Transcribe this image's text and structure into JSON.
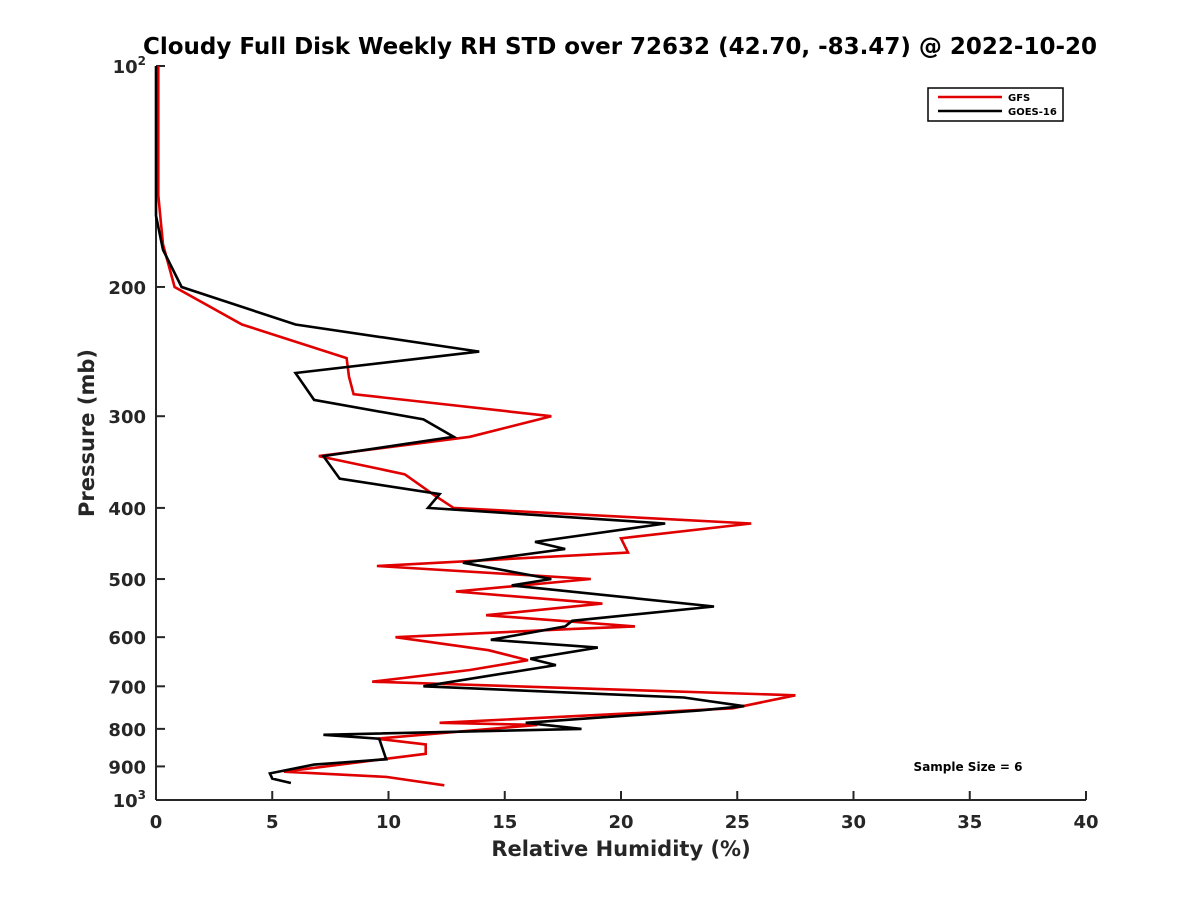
{
  "chart_data": {
    "type": "line",
    "title": "Cloudy Full Disk Weekly RH STD over 72632 (42.70, -83.47) @ 2022-10-20",
    "xlabel": "Relative Humidity (%)",
    "ylabel": "Pressure (mb)",
    "xlim": [
      0,
      40
    ],
    "ylim": [
      100,
      1000
    ],
    "y_scale": "log",
    "y_reversed": true,
    "x_ticks": [
      0,
      5,
      10,
      15,
      20,
      25,
      30,
      35,
      40
    ],
    "y_ticks": [
      100,
      200,
      300,
      400,
      500,
      600,
      700,
      800,
      900,
      1000
    ],
    "y_tick_labels": [
      {
        "value": 100,
        "base": "10",
        "exp": "2"
      },
      {
        "value": 200,
        "base": "200",
        "exp": ""
      },
      {
        "value": 300,
        "base": "300",
        "exp": ""
      },
      {
        "value": 400,
        "base": "400",
        "exp": ""
      },
      {
        "value": 500,
        "base": "500",
        "exp": ""
      },
      {
        "value": 600,
        "base": "600",
        "exp": ""
      },
      {
        "value": 700,
        "base": "700",
        "exp": ""
      },
      {
        "value": 800,
        "base": "800",
        "exp": ""
      },
      {
        "value": 900,
        "base": "900",
        "exp": ""
      },
      {
        "value": 1000,
        "base": "10",
        "exp": "3"
      }
    ],
    "grid": false,
    "legend_position": "top-right",
    "annotation": "Sample Size = 6",
    "series": [
      {
        "name": "GFS",
        "color": "#e00000",
        "points": [
          [
            0.1,
            100
          ],
          [
            0.1,
            150
          ],
          [
            0.3,
            175
          ],
          [
            0.8,
            200
          ],
          [
            3.7,
            225
          ],
          [
            8.2,
            250
          ],
          [
            8.3,
            265
          ],
          [
            8.5,
            280
          ],
          [
            17.0,
            300
          ],
          [
            13.5,
            320
          ],
          [
            7.0,
            340
          ],
          [
            10.7,
            360
          ],
          [
            12.0,
            385
          ],
          [
            12.8,
            400
          ],
          [
            25.6,
            420
          ],
          [
            20.0,
            440
          ],
          [
            20.3,
            460
          ],
          [
            9.5,
            480
          ],
          [
            18.7,
            500
          ],
          [
            12.9,
            520
          ],
          [
            19.2,
            540
          ],
          [
            14.2,
            560
          ],
          [
            20.6,
            580
          ],
          [
            17.8,
            585
          ],
          [
            10.3,
            600
          ],
          [
            14.3,
            625
          ],
          [
            16.0,
            645
          ],
          [
            13.5,
            665
          ],
          [
            9.3,
            690
          ],
          [
            27.5,
            720
          ],
          [
            24.8,
            750
          ],
          [
            12.2,
            785
          ],
          [
            16.4,
            790
          ],
          [
            9.5,
            825
          ],
          [
            11.6,
            840
          ],
          [
            11.6,
            865
          ],
          [
            5.5,
            915
          ],
          [
            9.9,
            930
          ],
          [
            12.4,
            955
          ]
        ]
      },
      {
        "name": "GOES-16",
        "color": "#000000",
        "points": [
          [
            0.0,
            100
          ],
          [
            0.0,
            160
          ],
          [
            0.3,
            178
          ],
          [
            1.1,
            200
          ],
          [
            6.0,
            225
          ],
          [
            13.9,
            245
          ],
          [
            6.0,
            262
          ],
          [
            6.8,
            285
          ],
          [
            11.5,
            303
          ],
          [
            12.8,
            320
          ],
          [
            7.2,
            340
          ],
          [
            7.9,
            365
          ],
          [
            12.2,
            383
          ],
          [
            11.7,
            400
          ],
          [
            21.9,
            420
          ],
          [
            16.3,
            445
          ],
          [
            17.6,
            455
          ],
          [
            13.2,
            475
          ],
          [
            17.0,
            500
          ],
          [
            15.3,
            510
          ],
          [
            24.0,
            545
          ],
          [
            17.9,
            570
          ],
          [
            17.6,
            580
          ],
          [
            14.4,
            605
          ],
          [
            19.0,
            620
          ],
          [
            16.1,
            642
          ],
          [
            17.2,
            655
          ],
          [
            11.5,
            700
          ],
          [
            22.7,
            725
          ],
          [
            25.3,
            745
          ],
          [
            23.4,
            755
          ],
          [
            15.9,
            785
          ],
          [
            18.3,
            800
          ],
          [
            7.2,
            815
          ],
          [
            9.6,
            825
          ],
          [
            9.9,
            880
          ],
          [
            6.8,
            895
          ],
          [
            4.9,
            920
          ],
          [
            5.0,
            935
          ],
          [
            5.8,
            948
          ]
        ]
      }
    ]
  }
}
